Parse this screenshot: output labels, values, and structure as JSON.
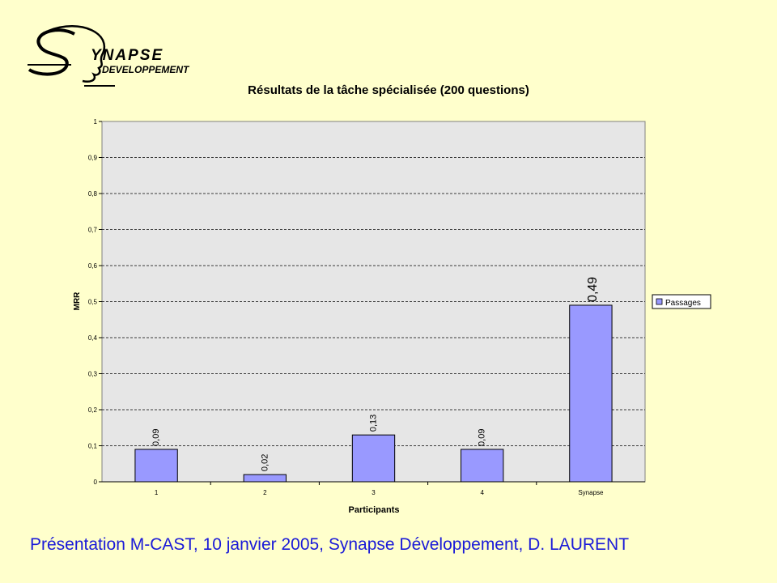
{
  "logo": {
    "text_main": "YNAPSE",
    "text_sub": "DEVELOPPEMENT"
  },
  "footer": {
    "text": "Présentation M-CAST, 10 janvier 2005, Synapse Développement,  D. LAURENT"
  },
  "chart_data": {
    "type": "bar",
    "title": "Résultats de la tâche spécialisée (200 questions)",
    "xlabel": "Participants",
    "ylabel": "MRR",
    "categories": [
      "1",
      "2",
      "3",
      "4",
      "Synapse"
    ],
    "series": [
      {
        "name": "Passages",
        "values": [
          0.09,
          0.02,
          0.13,
          0.09,
          0.49
        ],
        "labels": [
          "0,09",
          "0,02",
          "0,13",
          "0,09",
          "0,49"
        ],
        "color": "#9999FF"
      }
    ],
    "ylim": [
      0,
      1
    ],
    "yticks": [
      0,
      0.1,
      0.2,
      0.3,
      0.4,
      0.5,
      0.6,
      0.7,
      0.8,
      0.9,
      1
    ],
    "ytick_labels": [
      "0",
      "0,1",
      "0,2",
      "0,3",
      "0,4",
      "0,5",
      "0,6",
      "0,7",
      "0,8",
      "0,9",
      "1"
    ],
    "grid": true,
    "legend_position": "right",
    "plot_background": "#E6E6E6"
  }
}
